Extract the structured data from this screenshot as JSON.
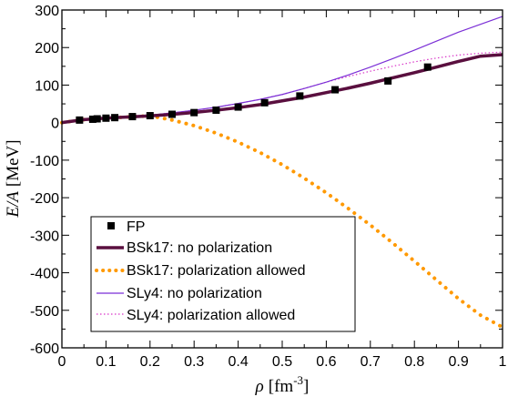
{
  "chart_data": {
    "type": "line",
    "xlabel": {
      "symbol": "ρ",
      "unit": "[fm",
      "exp": "-3",
      "close": "]"
    },
    "ylabel": {
      "symbol": "E/A",
      "unit": "[MeV]"
    },
    "xlim": [
      0,
      1
    ],
    "ylim": [
      -600,
      300
    ],
    "x_ticks": [
      "0",
      "0.1",
      "0.2",
      "0.3",
      "0.4",
      "0.5",
      "0.6",
      "0.7",
      "0.8",
      "0.9",
      "1"
    ],
    "y_ticks": [
      "-600",
      "-500",
      "-400",
      "-300",
      "-200",
      "-100",
      "0",
      "100",
      "200",
      "300"
    ],
    "legend_position": "lower-left",
    "series": [
      {
        "name": "FP",
        "kind": "markers",
        "color": "#000000",
        "x": [
          0.04,
          0.07,
          0.08,
          0.1,
          0.12,
          0.16,
          0.2,
          0.25,
          0.3,
          0.35,
          0.4,
          0.46,
          0.54,
          0.62,
          0.74,
          0.83
        ],
        "y": [
          6.8,
          9.0,
          10.1,
          11.9,
          13.3,
          16.0,
          18.5,
          22.2,
          26.7,
          33.2,
          41.5,
          53.0,
          71.0,
          87.6,
          111.0,
          148.0
        ]
      },
      {
        "name": "BSk17: no polarization",
        "kind": "line",
        "color": "#5a0f3f",
        "x": [
          0,
          0.05,
          0.1,
          0.15,
          0.2,
          0.25,
          0.3,
          0.35,
          0.4,
          0.45,
          0.5,
          0.55,
          0.6,
          0.65,
          0.7,
          0.75,
          0.8,
          0.85,
          0.9,
          0.95,
          1.0
        ],
        "y": [
          0,
          8,
          12,
          15,
          18,
          22,
          27,
          33,
          40,
          48,
          58,
          68,
          80,
          92,
          105,
          119,
          133,
          148,
          163,
          177,
          181
        ]
      },
      {
        "name": "BSk17: polarization allowed",
        "kind": "dotted",
        "color": "#ff9900",
        "x": [
          0,
          0.05,
          0.1,
          0.15,
          0.2,
          0.25,
          0.3,
          0.35,
          0.4,
          0.45,
          0.5,
          0.55,
          0.6,
          0.65,
          0.7,
          0.75,
          0.8,
          0.85,
          0.9,
          0.95,
          1.0
        ],
        "y": [
          0,
          8,
          12,
          15,
          18,
          7,
          -8,
          -28,
          -52,
          -80,
          -112,
          -148,
          -187,
          -229,
          -273,
          -320,
          -369,
          -419,
          -469,
          -513,
          -545
        ]
      },
      {
        "name": "SLy4: no polarization",
        "kind": "line",
        "color": "#7b2fd6",
        "x": [
          0,
          0.05,
          0.1,
          0.15,
          0.2,
          0.25,
          0.3,
          0.35,
          0.4,
          0.45,
          0.5,
          0.55,
          0.6,
          0.65,
          0.7,
          0.75,
          0.8,
          0.85,
          0.9,
          0.95,
          1.0
        ],
        "y": [
          0,
          7,
          11,
          15,
          20,
          26,
          33,
          41,
          51,
          62,
          75,
          91,
          108,
          127,
          148,
          170,
          193,
          217,
          241,
          262,
          283
        ]
      },
      {
        "name": "SLy4: polarization allowed",
        "kind": "dotted",
        "color": "#d936c9",
        "x": [
          0,
          0.05,
          0.1,
          0.15,
          0.2,
          0.25,
          0.3,
          0.35,
          0.4,
          0.45,
          0.5,
          0.55,
          0.6,
          0.65,
          0.7,
          0.75,
          0.8,
          0.85,
          0.9,
          0.95,
          1.0
        ],
        "y": [
          0,
          7,
          11,
          15,
          20,
          26,
          33,
          41,
          51,
          62,
          75,
          91,
          108,
          123,
          137,
          150,
          162,
          172,
          180,
          185,
          188
        ]
      }
    ]
  }
}
